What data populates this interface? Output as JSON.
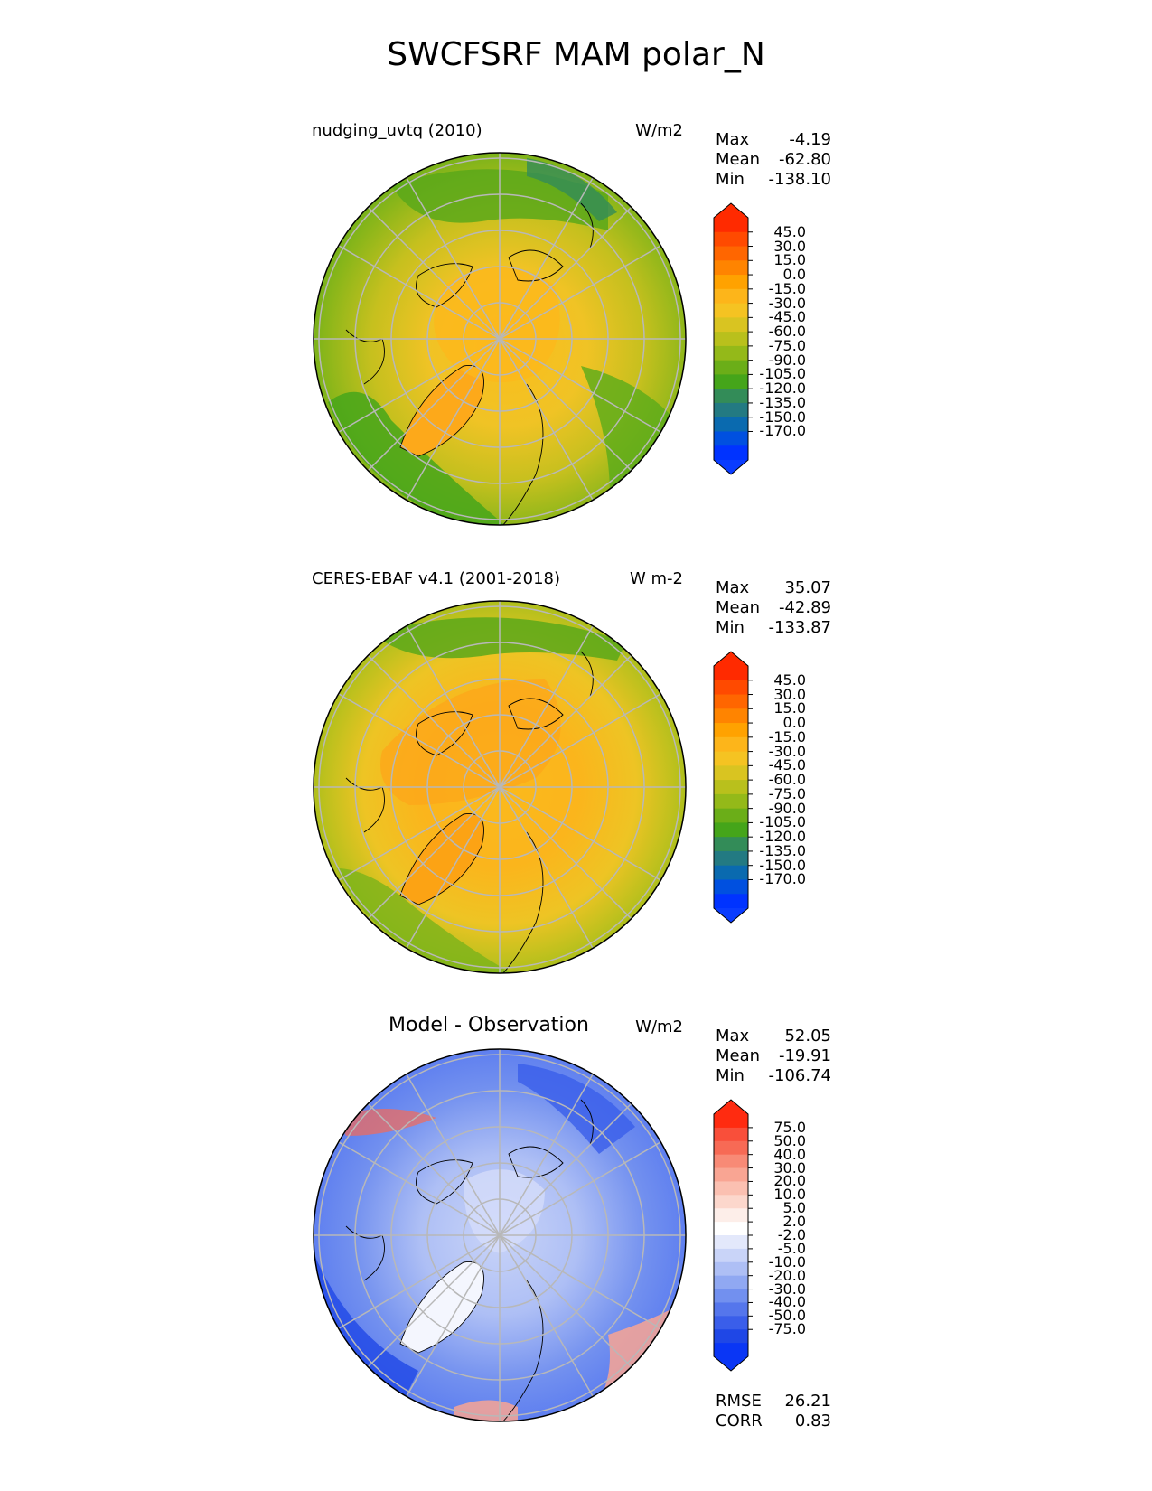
{
  "title": "SWCFSRF MAM polar_N",
  "panels": [
    {
      "id": "model",
      "title": "nudging_uvtq (2010)",
      "units": "W/m2",
      "stats": [
        {
          "label": "Max",
          "value": "-4.19"
        },
        {
          "label": "Mean",
          "value": "-62.80"
        },
        {
          "label": "Min",
          "value": "-138.10"
        }
      ],
      "colorbar_labels": [
        "45.0",
        "30.0",
        "15.0",
        "0.0",
        "-15.0",
        "-30.0",
        "-45.0",
        "-60.0",
        "-75.0",
        "-90.0",
        "-105.0",
        "-120.0",
        "-135.0",
        "-150.0",
        "-170.0"
      ],
      "colorbar_colors": [
        "#ff2a00",
        "#ff4a00",
        "#ff6600",
        "#ff8400",
        "#ffa200",
        "#fdb51a",
        "#f5c322",
        "#d9c421",
        "#b9c01c",
        "#94b919",
        "#6bae18",
        "#45a51a",
        "#338c58",
        "#237a82",
        "#0a6aaf",
        "#0050e0",
        "#0033ff"
      ],
      "colors": {
        "cap_top": "#ff2a00",
        "cap_bottom": "#0a3cff"
      }
    },
    {
      "id": "observation",
      "title": "CERES-EBAF v4.1 (2001-2018)",
      "units": "W m-2",
      "stats": [
        {
          "label": "Max",
          "value": "35.07"
        },
        {
          "label": "Mean",
          "value": "-42.89"
        },
        {
          "label": "Min",
          "value": "-133.87"
        }
      ],
      "colorbar_labels": [
        "45.0",
        "30.0",
        "15.0",
        "0.0",
        "-15.0",
        "-30.0",
        "-45.0",
        "-60.0",
        "-75.0",
        "-90.0",
        "-105.0",
        "-120.0",
        "-135.0",
        "-150.0",
        "-170.0"
      ],
      "colorbar_colors": [
        "#ff2a00",
        "#ff4a00",
        "#ff6600",
        "#ff8400",
        "#ffa200",
        "#fdb51a",
        "#f5c322",
        "#d9c421",
        "#b9c01c",
        "#94b919",
        "#6bae18",
        "#45a51a",
        "#338c58",
        "#237a82",
        "#0a6aaf",
        "#0050e0",
        "#0033ff"
      ],
      "colors": {
        "cap_top": "#ff2a00",
        "cap_bottom": "#0a3cff"
      }
    },
    {
      "id": "difference",
      "title": "Model - Observation",
      "units": "W/m2",
      "stats": [
        {
          "label": "Max",
          "value": "52.05"
        },
        {
          "label": "Mean",
          "value": "-19.91"
        },
        {
          "label": "Min",
          "value": "-106.74"
        }
      ],
      "colorbar_labels": [
        "75.0",
        "50.0",
        "40.0",
        "30.0",
        "20.0",
        "10.0",
        "5.0",
        "2.0",
        "-2.0",
        "-5.0",
        "-10.0",
        "-20.0",
        "-30.0",
        "-40.0",
        "-50.0",
        "-75.0"
      ],
      "colorbar_colors": [
        "#ff2b10",
        "#f94f3a",
        "#f76a55",
        "#f88a76",
        "#f9a593",
        "#fbc0b1",
        "#fcd7cc",
        "#fdeee9",
        "#ffffff",
        "#e3e8fb",
        "#c9d4f8",
        "#aebff5",
        "#90a8f2",
        "#7290ef",
        "#5576ec",
        "#3a5eea",
        "#1f47e6",
        "#0a36f5"
      ],
      "colors": {
        "cap_top": "#ff2b10",
        "cap_bottom": "#0a36f5"
      },
      "metrics": [
        {
          "label": "RMSE",
          "value": "26.21"
        },
        {
          "label": "CORR",
          "value": "0.83"
        }
      ]
    }
  ]
}
